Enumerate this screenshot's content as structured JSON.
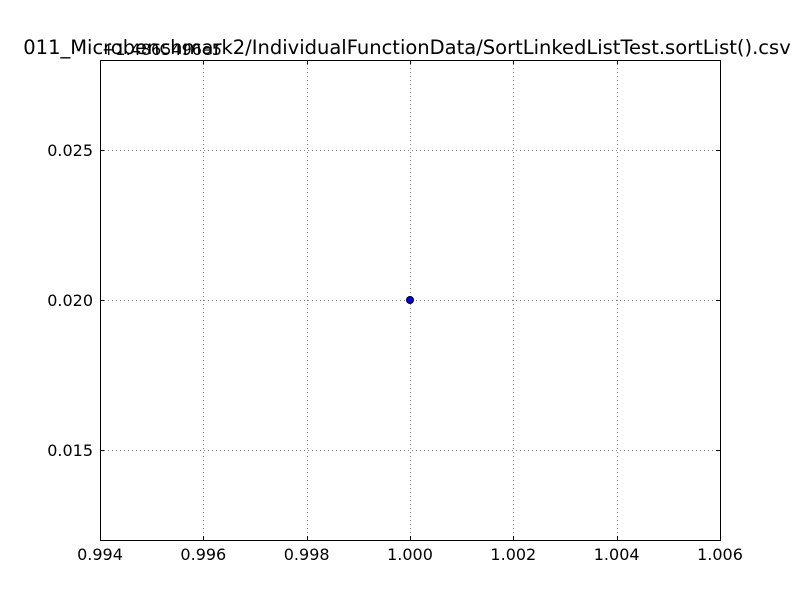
{
  "chart_data": {
    "type": "scatter",
    "title": "011_Microbenchmark2/IndividualFunctionData/SortLinkedListTest.sortList().csv",
    "xlabel": "",
    "ylabel": "",
    "y_offset_label": "+1.4865496e5",
    "xlim": [
      0.994,
      1.006
    ],
    "ylim": [
      0.012,
      0.028
    ],
    "x_ticks": [
      0.994,
      0.996,
      0.998,
      1.0,
      1.002,
      1.004,
      1.006
    ],
    "x_tick_labels": [
      "0.994",
      "0.996",
      "0.998",
      "1.000",
      "1.002",
      "1.004",
      "1.006"
    ],
    "y_ticks": [
      0.015,
      0.02,
      0.025
    ],
    "y_tick_labels": [
      "0.015",
      "0.020",
      "0.025"
    ],
    "grid": true,
    "series": [
      {
        "points": [
          {
            "x": 1.0,
            "y": 0.02
          }
        ]
      }
    ],
    "colors": {
      "marker_fill": "#0000ff",
      "marker_edge": "#000000",
      "grid": "#7f7f7f",
      "axes": "#000000"
    }
  }
}
